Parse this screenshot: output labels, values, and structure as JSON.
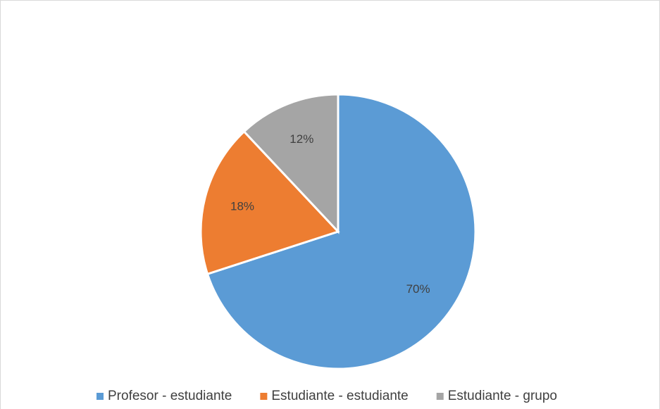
{
  "chart_data": {
    "type": "pie",
    "categories": [
      "Profesor - estudiante",
      "Estudiante - estudiante",
      "Estudiante - grupo"
    ],
    "values": [
      70,
      18,
      12
    ],
    "value_labels": [
      "70%",
      "18%",
      "12%"
    ],
    "colors": [
      "#5b9bd5",
      "#ed7d31",
      "#a5a5a5"
    ],
    "legend": "bottom"
  }
}
